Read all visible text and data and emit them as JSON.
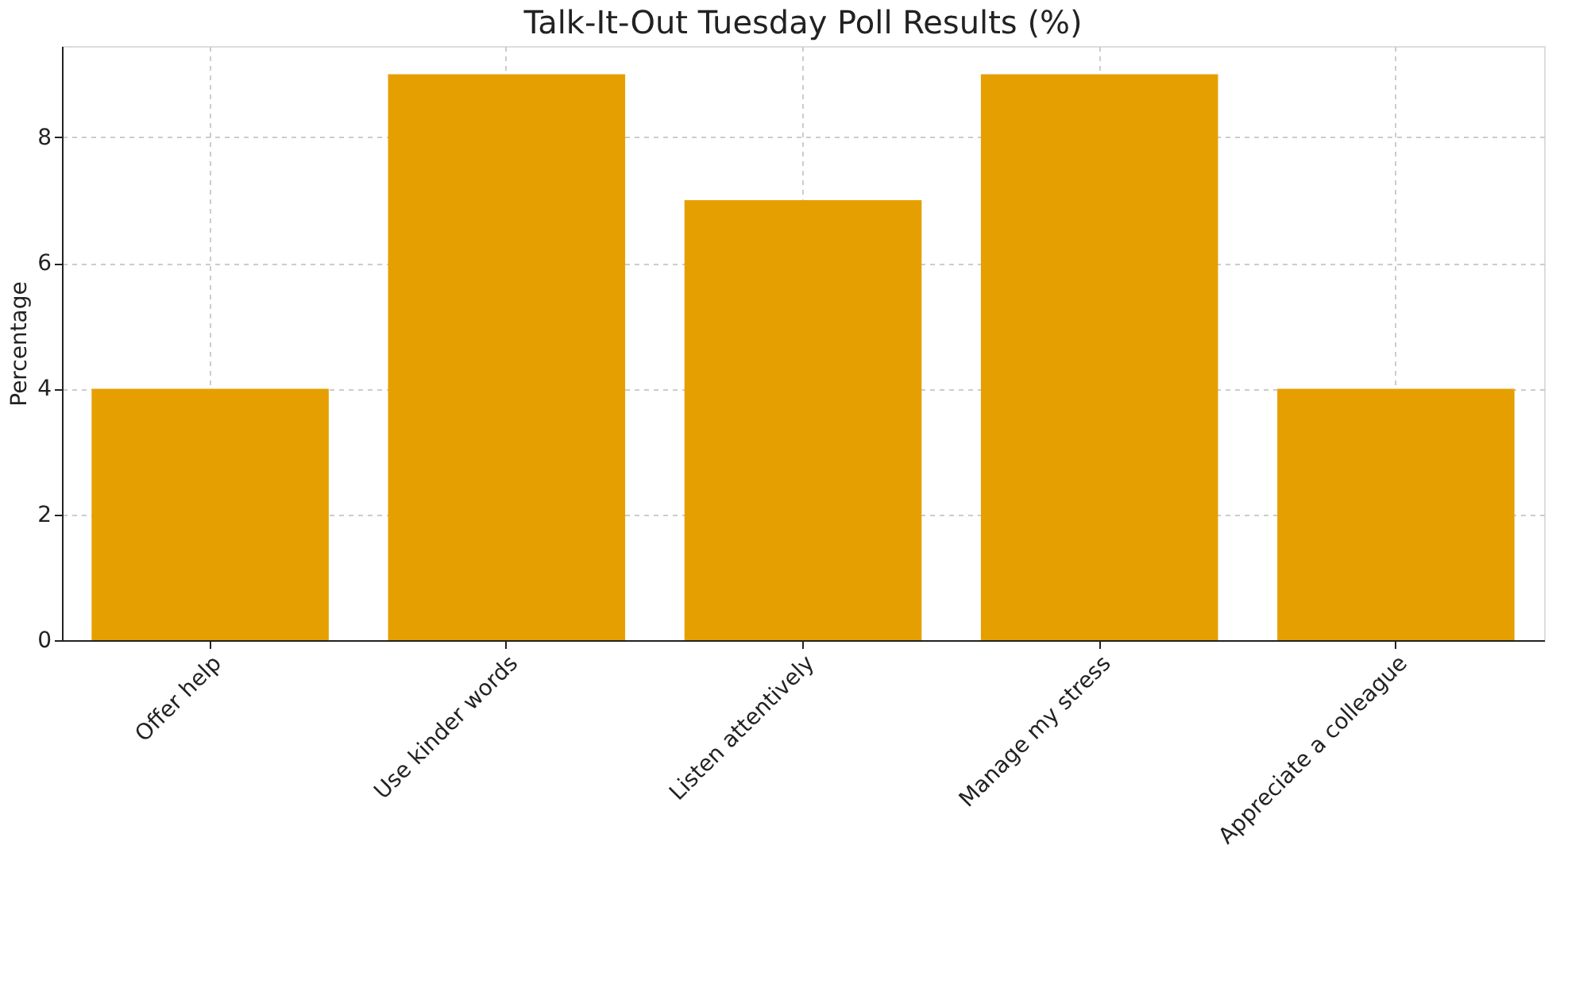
{
  "chart_data": {
    "type": "bar",
    "title": "Talk-It-Out Tuesday Poll Results (%)",
    "ylabel": "Percentage",
    "categories": [
      "Offer help",
      "Use kinder words",
      "Listen attentively",
      "Manage my stress",
      "Appreciate a colleague"
    ],
    "values": [
      4,
      9,
      7,
      9,
      4
    ],
    "color": "#e69f00",
    "ylim": [
      0,
      9.45
    ],
    "yticks": [
      0,
      2,
      4,
      6,
      8
    ],
    "grid": true
  }
}
